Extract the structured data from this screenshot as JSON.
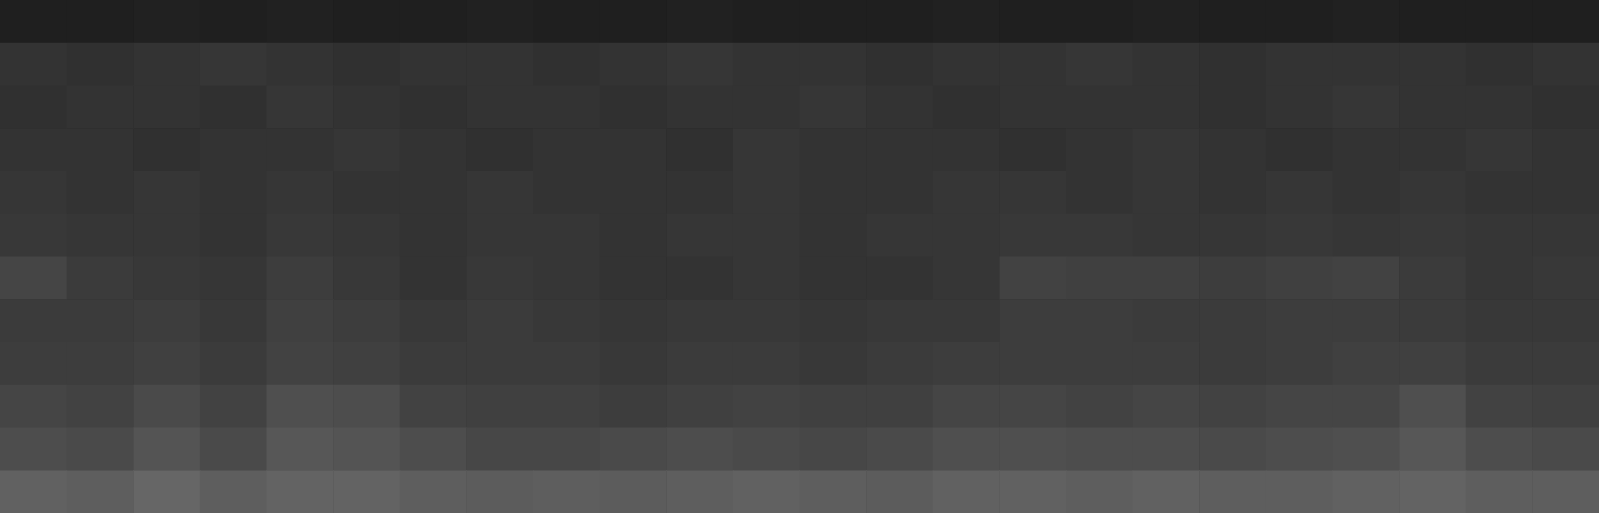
{
  "chart_data": {
    "type": "heatmap",
    "tick_labels": false,
    "zlim": [
      0,
      1
    ],
    "cells": [
      [
        0.12,
        0.12,
        0.13,
        0.12,
        0.13,
        0.12,
        0.12,
        0.13,
        0.12,
        0.12,
        0.13,
        0.12,
        0.12,
        0.12,
        0.13,
        0.12,
        0.12,
        0.13,
        0.12,
        0.12,
        0.13,
        0.12,
        0.12,
        0.12
      ],
      [
        0.2,
        0.19,
        0.2,
        0.21,
        0.2,
        0.19,
        0.2,
        0.2,
        0.19,
        0.2,
        0.21,
        0.2,
        0.2,
        0.19,
        0.2,
        0.2,
        0.21,
        0.2,
        0.19,
        0.2,
        0.2,
        0.2,
        0.19,
        0.2
      ],
      [
        0.19,
        0.2,
        0.2,
        0.19,
        0.21,
        0.2,
        0.19,
        0.2,
        0.2,
        0.19,
        0.2,
        0.2,
        0.21,
        0.2,
        0.19,
        0.2,
        0.2,
        0.2,
        0.19,
        0.2,
        0.21,
        0.2,
        0.2,
        0.19
      ],
      [
        0.2,
        0.2,
        0.19,
        0.2,
        0.2,
        0.21,
        0.2,
        0.19,
        0.2,
        0.2,
        0.19,
        0.21,
        0.2,
        0.2,
        0.2,
        0.19,
        0.2,
        0.21,
        0.2,
        0.19,
        0.2,
        0.2,
        0.21,
        0.2
      ],
      [
        0.21,
        0.2,
        0.21,
        0.2,
        0.21,
        0.2,
        0.2,
        0.21,
        0.2,
        0.2,
        0.2,
        0.21,
        0.2,
        0.2,
        0.21,
        0.21,
        0.2,
        0.21,
        0.2,
        0.21,
        0.2,
        0.21,
        0.2,
        0.2
      ],
      [
        0.22,
        0.21,
        0.21,
        0.2,
        0.22,
        0.21,
        0.2,
        0.21,
        0.21,
        0.2,
        0.21,
        0.21,
        0.2,
        0.21,
        0.21,
        0.22,
        0.22,
        0.21,
        0.21,
        0.22,
        0.21,
        0.22,
        0.21,
        0.21
      ],
      [
        0.27,
        0.23,
        0.22,
        0.21,
        0.24,
        0.22,
        0.2,
        0.22,
        0.21,
        0.2,
        0.2,
        0.21,
        0.2,
        0.2,
        0.21,
        0.26,
        0.25,
        0.25,
        0.24,
        0.25,
        0.26,
        0.23,
        0.21,
        0.22
      ],
      [
        0.23,
        0.23,
        0.24,
        0.22,
        0.25,
        0.24,
        0.22,
        0.23,
        0.22,
        0.21,
        0.22,
        0.22,
        0.21,
        0.22,
        0.22,
        0.24,
        0.24,
        0.23,
        0.23,
        0.24,
        0.24,
        0.23,
        0.22,
        0.22
      ],
      [
        0.24,
        0.24,
        0.25,
        0.23,
        0.26,
        0.25,
        0.23,
        0.23,
        0.23,
        0.22,
        0.23,
        0.23,
        0.22,
        0.23,
        0.24,
        0.24,
        0.24,
        0.24,
        0.23,
        0.24,
        0.25,
        0.25,
        0.23,
        0.23
      ],
      [
        0.27,
        0.26,
        0.29,
        0.26,
        0.31,
        0.3,
        0.26,
        0.25,
        0.25,
        0.24,
        0.25,
        0.26,
        0.25,
        0.25,
        0.27,
        0.27,
        0.26,
        0.27,
        0.26,
        0.27,
        0.27,
        0.31,
        0.26,
        0.25
      ],
      [
        0.3,
        0.29,
        0.33,
        0.29,
        0.34,
        0.33,
        0.3,
        0.28,
        0.28,
        0.29,
        0.3,
        0.29,
        0.28,
        0.29,
        0.31,
        0.31,
        0.3,
        0.3,
        0.29,
        0.3,
        0.31,
        0.34,
        0.3,
        0.29
      ],
      [
        0.38,
        0.37,
        0.4,
        0.37,
        0.39,
        0.39,
        0.37,
        0.36,
        0.37,
        0.36,
        0.37,
        0.38,
        0.37,
        0.36,
        0.38,
        0.38,
        0.37,
        0.38,
        0.37,
        0.37,
        0.38,
        0.39,
        0.37,
        0.37
      ]
    ]
  }
}
